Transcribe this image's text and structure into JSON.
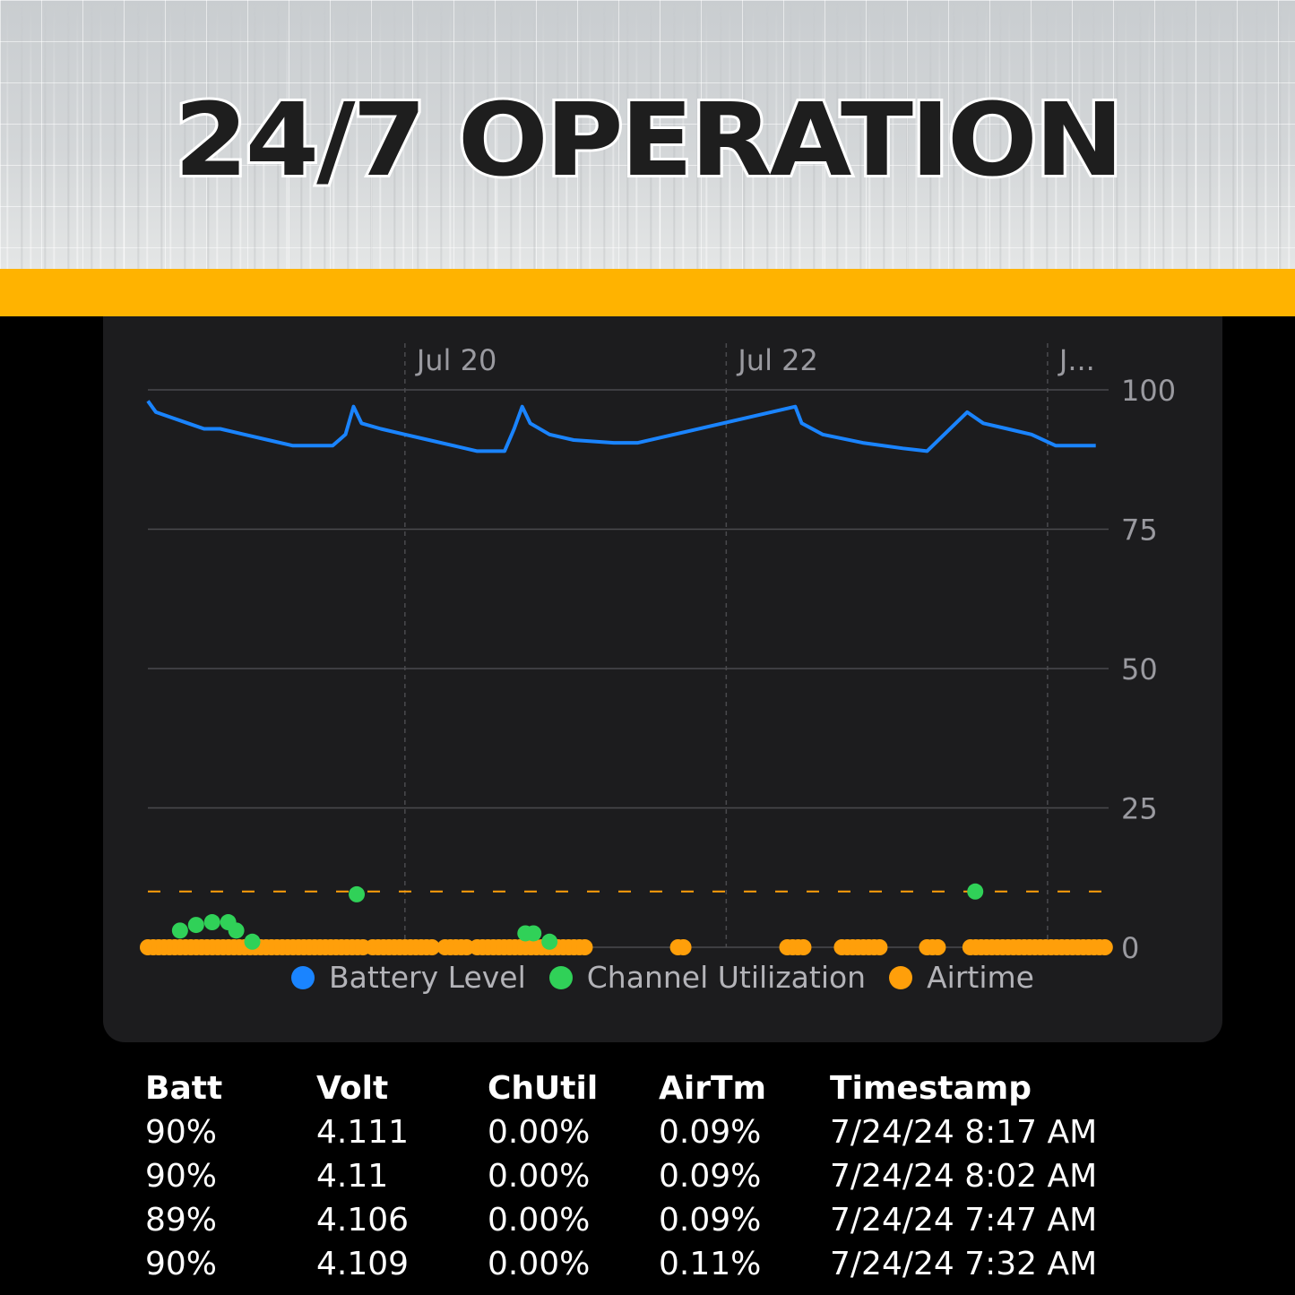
{
  "banner": {
    "title": "24/7 OPERATION",
    "accent_color": "#ffb300"
  },
  "chart_data": {
    "type": "line",
    "x_tick_labels": [
      "Jul 20",
      "Jul 22",
      "J..."
    ],
    "y_ticks": [
      0,
      25,
      50,
      75,
      100
    ],
    "ylim": [
      0,
      100
    ],
    "grid": true,
    "legend_position": "bottom",
    "legend": [
      {
        "name": "Battery Level",
        "color": "#1a84ff"
      },
      {
        "name": "Channel Utilization",
        "color": "#30d158"
      },
      {
        "name": "Airtime",
        "color": "#ff9f0a"
      }
    ],
    "airtime_threshold": 10,
    "series": [
      {
        "name": "Battery Level",
        "type": "line",
        "color": "#1a84ff",
        "points": [
          [
            18.4,
            98
          ],
          [
            18.45,
            96
          ],
          [
            18.55,
            95
          ],
          [
            18.65,
            94
          ],
          [
            18.75,
            93
          ],
          [
            18.85,
            93
          ],
          [
            19.0,
            92
          ],
          [
            19.15,
            91
          ],
          [
            19.3,
            90
          ],
          [
            19.55,
            90
          ],
          [
            19.63,
            92
          ],
          [
            19.68,
            97
          ],
          [
            19.73,
            94
          ],
          [
            19.85,
            93
          ],
          [
            20.0,
            92
          ],
          [
            20.15,
            91
          ],
          [
            20.3,
            90
          ],
          [
            20.45,
            89
          ],
          [
            20.62,
            89
          ],
          [
            20.68,
            93
          ],
          [
            20.73,
            97
          ],
          [
            20.78,
            94
          ],
          [
            20.9,
            92
          ],
          [
            21.05,
            91
          ],
          [
            21.3,
            90.5
          ],
          [
            21.45,
            90.5
          ],
          [
            22.43,
            97
          ],
          [
            22.47,
            94
          ],
          [
            22.6,
            92
          ],
          [
            22.85,
            90.5
          ],
          [
            23.1,
            89.5
          ],
          [
            23.25,
            89
          ],
          [
            23.5,
            96
          ],
          [
            23.6,
            94
          ],
          [
            23.75,
            93
          ],
          [
            23.9,
            92
          ],
          [
            24.05,
            90
          ],
          [
            24.3,
            90
          ]
        ]
      },
      {
        "name": "Channel Utilization",
        "type": "scatter",
        "color": "#30d158",
        "points": [
          [
            18.6,
            3
          ],
          [
            18.7,
            4
          ],
          [
            18.8,
            4.5
          ],
          [
            18.9,
            4.5
          ],
          [
            18.95,
            3
          ],
          [
            19.05,
            1
          ],
          [
            19.7,
            9.5
          ],
          [
            20.75,
            2.5
          ],
          [
            20.8,
            2.5
          ],
          [
            20.9,
            1
          ],
          [
            23.55,
            10
          ]
        ]
      },
      {
        "name": "Airtime",
        "type": "scatter",
        "color": "#ff9f0a",
        "ranges": [
          [
            18.4,
            19.75
          ],
          [
            19.8,
            20.2
          ],
          [
            20.25,
            20.4
          ],
          [
            20.45,
            21.15
          ],
          [
            21.7,
            21.75
          ],
          [
            22.38,
            22.5
          ],
          [
            22.72,
            22.98
          ],
          [
            23.25,
            23.35
          ],
          [
            23.52,
            24.38
          ]
        ],
        "value": 0
      }
    ]
  },
  "table": {
    "headers": [
      "Batt",
      "Volt",
      "ChUtil",
      "AirTm",
      "Timestamp"
    ],
    "rows": [
      [
        "90%",
        "4.111",
        "0.00%",
        "0.09%",
        "7/24/24 8:17 AM"
      ],
      [
        "90%",
        "4.11",
        "0.00%",
        "0.09%",
        "7/24/24 8:02 AM"
      ],
      [
        "89%",
        "4.106",
        "0.00%",
        "0.09%",
        "7/24/24 7:47 AM"
      ],
      [
        "90%",
        "4.109",
        "0.00%",
        "0.11%",
        "7/24/24 7:32 AM"
      ]
    ]
  }
}
